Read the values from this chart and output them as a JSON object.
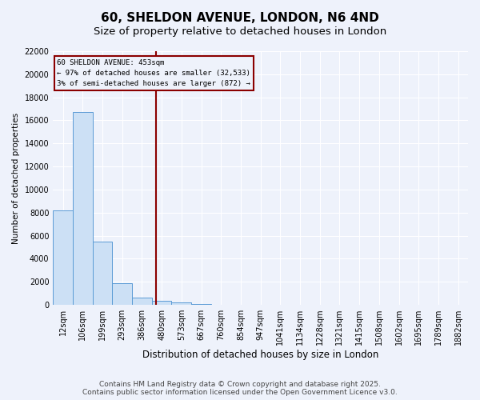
{
  "title_line1": "60, SHELDON AVENUE, LONDON, N6 4ND",
  "title_line2": "Size of property relative to detached houses in London",
  "xlabel": "Distribution of detached houses by size in London",
  "ylabel": "Number of detached properties",
  "bar_labels": [
    "12sqm",
    "106sqm",
    "199sqm",
    "293sqm",
    "386sqm",
    "480sqm",
    "573sqm",
    "667sqm",
    "760sqm",
    "854sqm",
    "947sqm",
    "1041sqm",
    "1134sqm",
    "1228sqm",
    "1321sqm",
    "1415sqm",
    "1508sqm",
    "1602sqm",
    "1695sqm",
    "1789sqm",
    "1882sqm"
  ],
  "bar_values": [
    8200,
    16700,
    5500,
    1900,
    650,
    380,
    200,
    80,
    30,
    10,
    5,
    2,
    1,
    0,
    0,
    0,
    0,
    0,
    0,
    0,
    0
  ],
  "bar_color": "#cce0f5",
  "bar_edge_color": "#5b9bd5",
  "vline_color": "#8B0000",
  "vline_pos": 4.713,
  "annotation_text": "60 SHELDON AVENUE: 453sqm\n← 97% of detached houses are smaller (32,533)\n3% of semi-detached houses are larger (872) →",
  "annotation_box_color": "#8B0000",
  "ylim": [
    0,
    22000
  ],
  "yticks": [
    0,
    2000,
    4000,
    6000,
    8000,
    10000,
    12000,
    14000,
    16000,
    18000,
    20000,
    22000
  ],
  "footer_line1": "Contains HM Land Registry data © Crown copyright and database right 2025.",
  "footer_line2": "Contains public sector information licensed under the Open Government Licence v3.0.",
  "bg_color": "#eef2fb",
  "grid_color": "#ffffff",
  "title1_fontsize": 11,
  "title2_fontsize": 9.5,
  "xlabel_fontsize": 8.5,
  "ylabel_fontsize": 7.5,
  "tick_fontsize": 7,
  "footer_fontsize": 6.5
}
